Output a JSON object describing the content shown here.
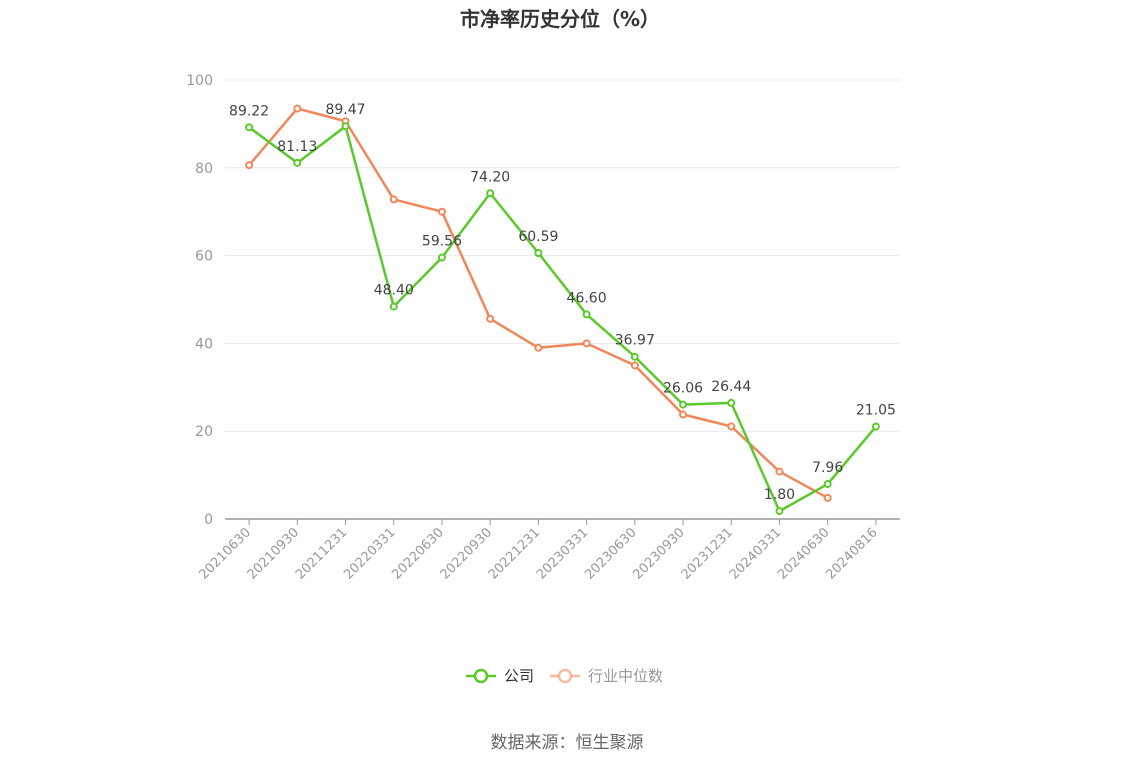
{
  "chart_data": {
    "type": "line",
    "title": "市净率历史分位（%）",
    "xlabel": "",
    "ylabel": "",
    "ylim": [
      0,
      100
    ],
    "yticks": [
      0,
      20,
      40,
      60,
      80,
      100
    ],
    "categories": [
      "20210630",
      "20210930",
      "20211231",
      "20220331",
      "20220630",
      "20220930",
      "20221231",
      "20230331",
      "20230630",
      "20230930",
      "20231231",
      "20240331",
      "20240630",
      "20240816"
    ],
    "series": [
      {
        "name": "公司",
        "color": "#5ac92a",
        "values": [
          89.22,
          81.13,
          89.47,
          48.4,
          59.56,
          74.2,
          60.59,
          46.6,
          36.97,
          26.06,
          26.44,
          1.8,
          7.96,
          21.05
        ],
        "labels": [
          "89.22",
          "81.13",
          "89.47",
          "48.40",
          "59.56",
          "74.20",
          "60.59",
          "46.60",
          "36.97",
          "26.06",
          "26.44",
          "1.80",
          "7.96",
          "21.05"
        ]
      },
      {
        "name": "行业中位数",
        "color": "#f0875a",
        "values": [
          80.6,
          93.5,
          90.6,
          72.8,
          70.0,
          45.6,
          39.0,
          40.0,
          35.0,
          23.8,
          21.1,
          10.8,
          4.8,
          null
        ]
      }
    ],
    "grid": true,
    "legend": "bottom-center"
  },
  "footer": {
    "source": "数据来源：恒生聚源"
  }
}
